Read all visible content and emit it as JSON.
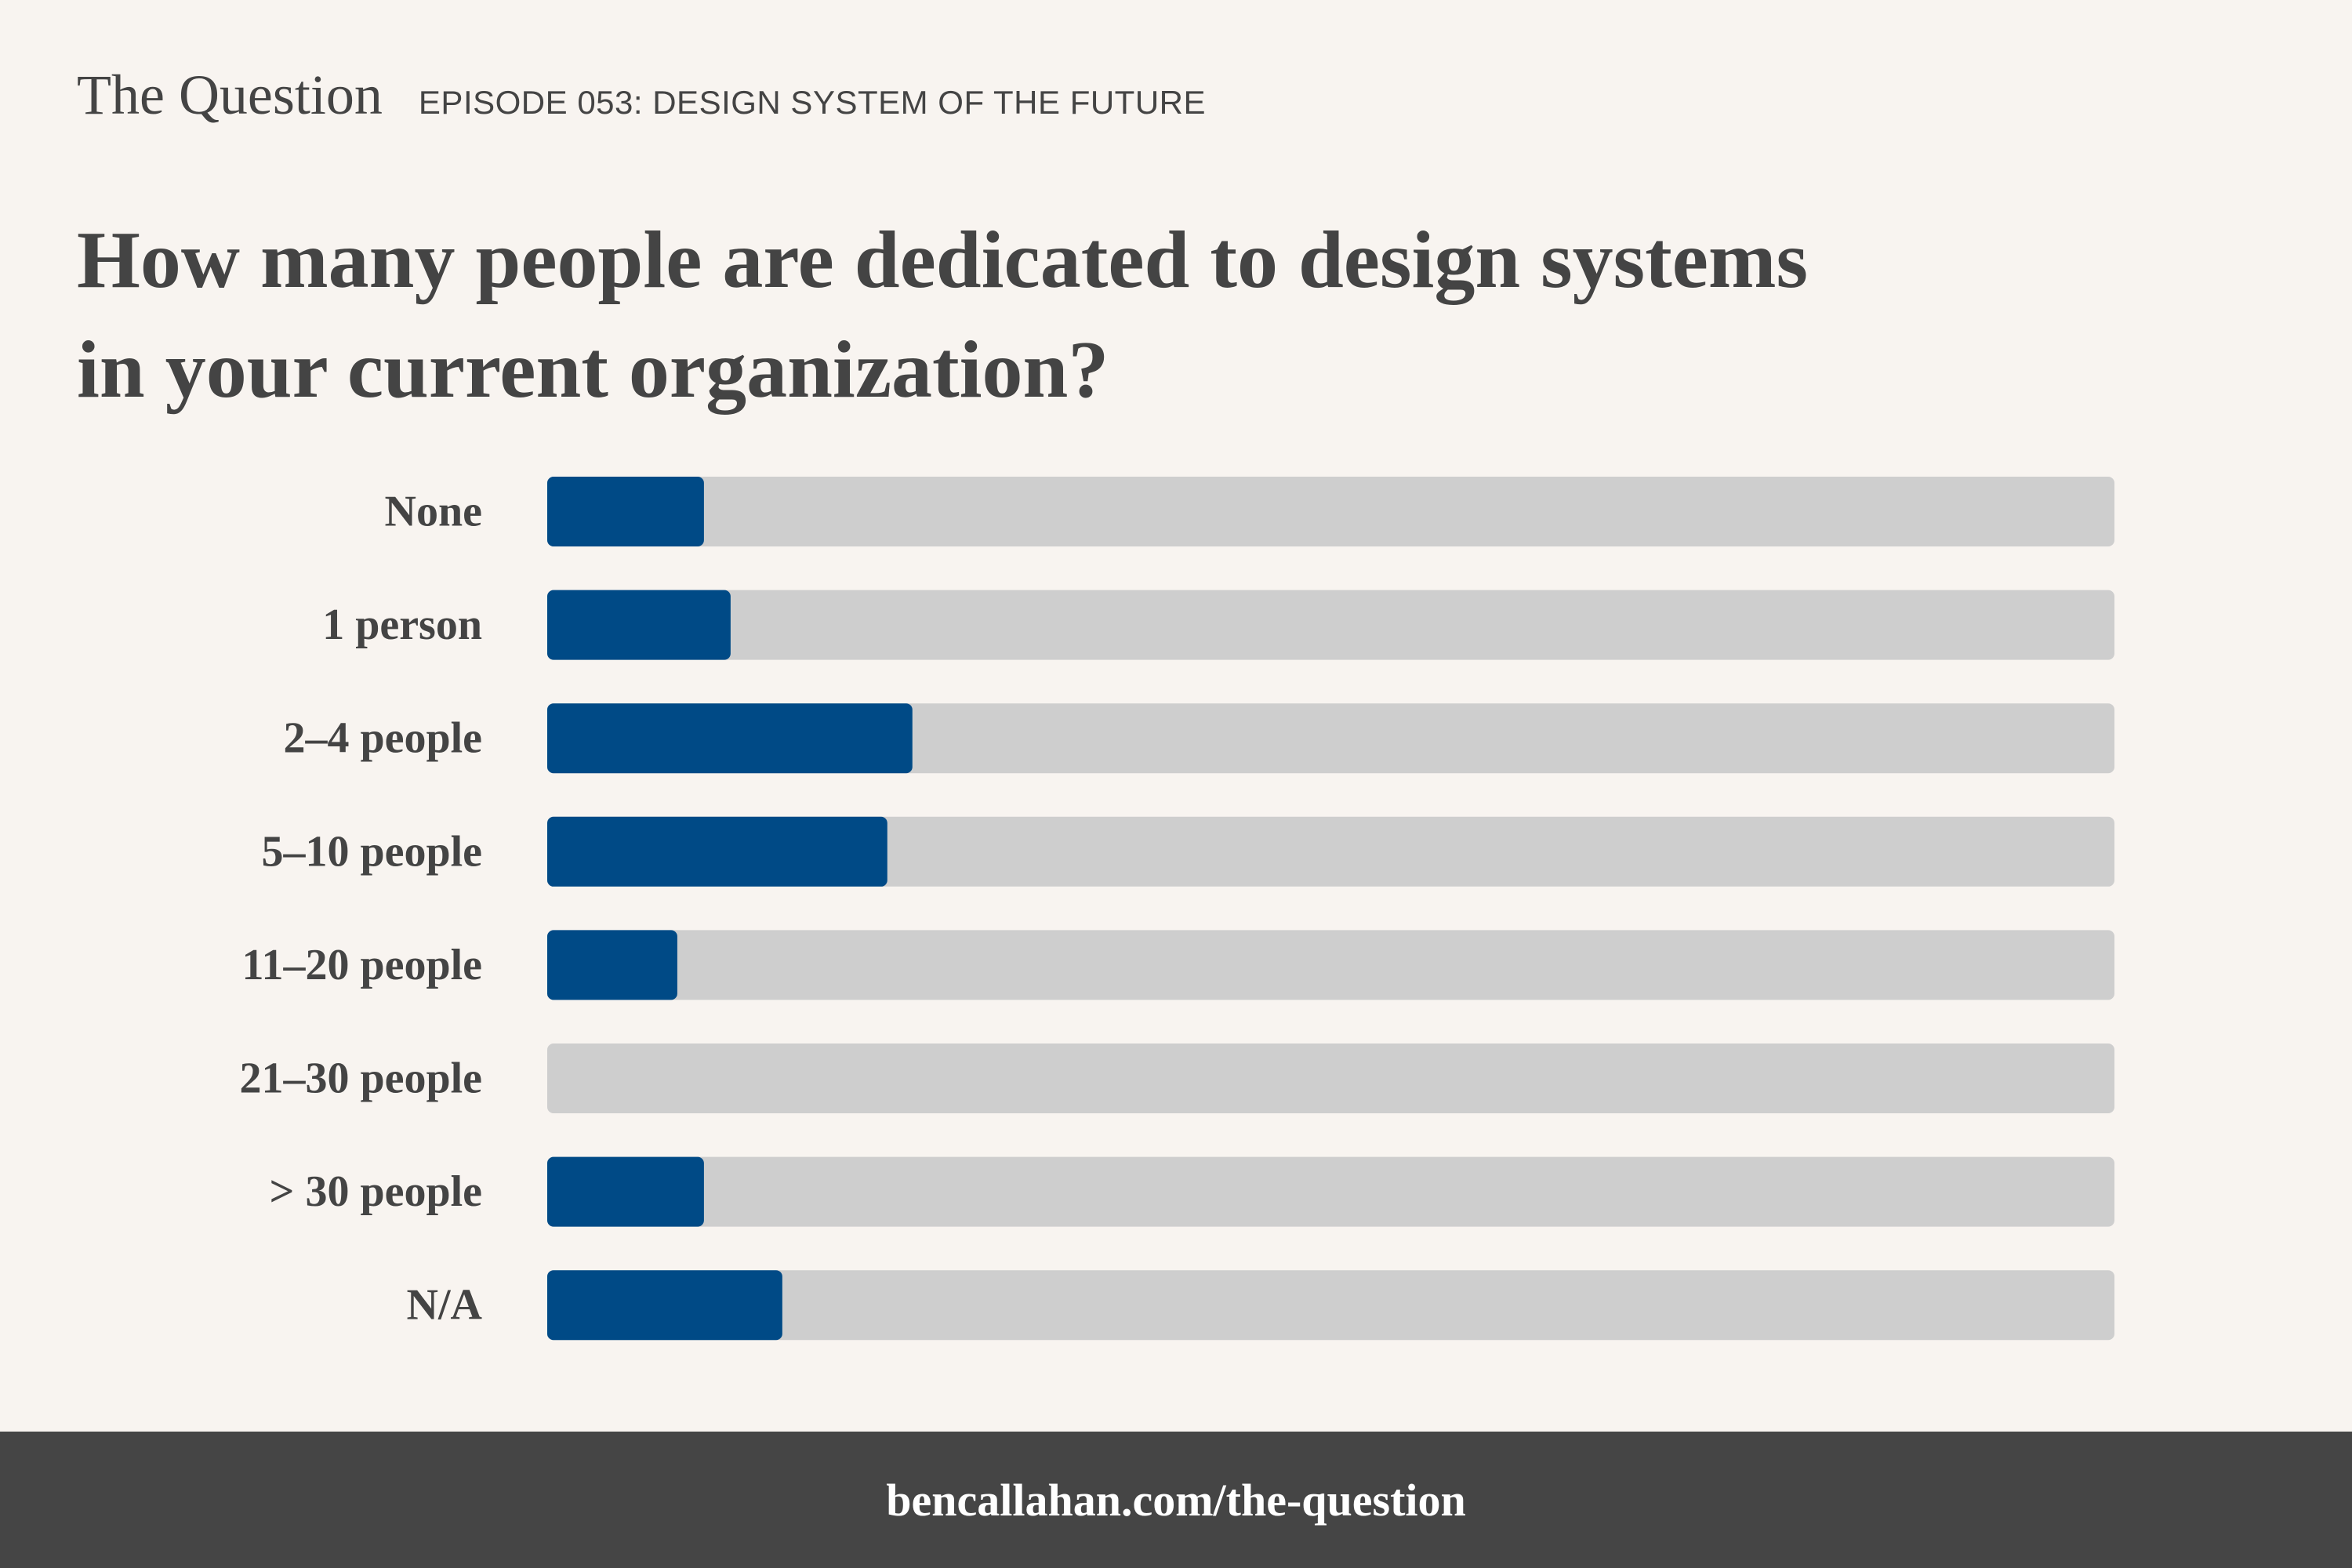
{
  "header": {
    "brand": "The Question",
    "episode": "EPISODE 053: DESIGN SYSTEM OF THE FUTURE"
  },
  "question": {
    "line1": "How many people are dedicated to design systems",
    "line2": "in your current organization?"
  },
  "chart_data": {
    "type": "bar",
    "orientation": "horizontal",
    "categories": [
      "None",
      "1 person",
      "2–4 people",
      "5–10 people",
      "11–20 people",
      "21–30 people",
      "> 30 people",
      "N/A"
    ],
    "values": [
      10,
      11.7,
      23.3,
      21.7,
      8.3,
      0,
      10,
      15
    ],
    "xlim": [
      0,
      100
    ],
    "bar_color": "#004a86",
    "track_color": "#cecece",
    "grid": false,
    "legend": "none"
  },
  "footer": {
    "link": "bencallahan.com/the-question"
  },
  "colors": {
    "background": "#f8f4f0",
    "text": "#444444",
    "footer_bg": "#454545",
    "footer_text": "#ffffff"
  }
}
